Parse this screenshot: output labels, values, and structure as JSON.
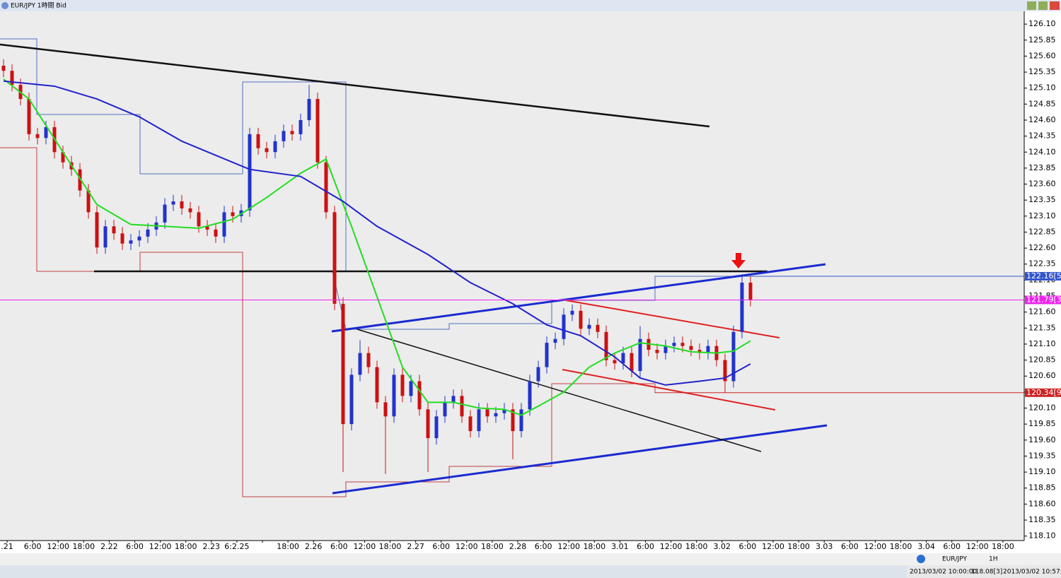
{
  "window_title": "EUR/JPY 1時間 Bid",
  "chart_data": {
    "type": "candlestick",
    "up_color": "#2233cc",
    "down_color": "#cc1111",
    "open": [
      125.45,
      125.37,
      125.15,
      124.93,
      124.38,
      124.32,
      124.49,
      124.1,
      123.94,
      123.83,
      123.5,
      123.16,
      122.61,
      122.94,
      122.83,
      122.67,
      122.72,
      122.78,
      122.89,
      123.0,
      123.28,
      123.33,
      123.22,
      123.16,
      122.94,
      122.89,
      122.78,
      123.16,
      123.1,
      123.19,
      124.38,
      124.16,
      124.1,
      124.27,
      124.43,
      124.38,
      124.6,
      124.93,
      123.94,
      123.16,
      121.73,
      119.85,
      120.62,
      120.96,
      120.74,
      120.19,
      119.97,
      120.62,
      120.29,
      120.52,
      120.08,
      119.63,
      119.97,
      120.19,
      120.29,
      119.97,
      119.74,
      120.08,
      119.97,
      120.02,
      120.08,
      119.74,
      120.08,
      120.52,
      120.74,
      121.12,
      121.18,
      121.56,
      121.62,
      121.34,
      121.4,
      121.29,
      120.85,
      120.8,
      120.96,
      120.68,
      121.18,
      121.01,
      120.96,
      121.07,
      121.12,
      121.07,
      121.01,
      120.96,
      121.07,
      120.85,
      120.52,
      121.29,
      122.06
    ],
    "high": [
      125.55,
      125.47,
      125.25,
      125.03,
      124.48,
      124.59,
      124.59,
      124.2,
      124.04,
      123.93,
      123.6,
      123.26,
      123.04,
      123.04,
      122.93,
      122.82,
      122.88,
      122.99,
      123.1,
      123.38,
      123.43,
      123.43,
      123.32,
      123.26,
      123.04,
      122.99,
      123.26,
      123.26,
      123.29,
      124.48,
      124.48,
      124.26,
      124.37,
      124.53,
      124.53,
      124.7,
      125.15,
      125.03,
      124.04,
      123.26,
      121.83,
      120.72,
      121.16,
      121.06,
      120.84,
      120.29,
      120.72,
      120.72,
      120.62,
      120.62,
      120.18,
      120.07,
      120.29,
      120.39,
      120.39,
      120.07,
      120.18,
      120.18,
      120.12,
      120.18,
      120.18,
      120.18,
      120.62,
      120.84,
      121.22,
      121.28,
      121.66,
      121.72,
      121.72,
      121.5,
      121.5,
      121.39,
      120.95,
      121.06,
      121.06,
      121.38,
      121.28,
      121.11,
      121.17,
      121.22,
      121.22,
      121.17,
      121.11,
      121.17,
      121.17,
      120.95,
      121.39,
      122.16,
      122.16
    ],
    "low": [
      125.27,
      125.05,
      124.83,
      124.28,
      124.22,
      124.22,
      124.0,
      123.84,
      123.73,
      123.4,
      123.06,
      122.51,
      122.51,
      122.73,
      122.57,
      122.57,
      122.62,
      122.68,
      122.79,
      122.9,
      123.18,
      123.12,
      123.06,
      122.84,
      122.79,
      122.68,
      122.68,
      123.0,
      123.0,
      123.09,
      124.06,
      124.0,
      124.0,
      124.17,
      124.28,
      124.28,
      124.5,
      123.84,
      123.06,
      121.63,
      119.1,
      119.75,
      120.52,
      120.64,
      120.09,
      119.07,
      119.87,
      120.19,
      120.19,
      119.98,
      119.1,
      119.53,
      119.87,
      120.09,
      119.87,
      119.64,
      119.64,
      119.87,
      119.87,
      119.92,
      119.3,
      119.64,
      119.98,
      120.42,
      120.64,
      121.02,
      121.08,
      121.46,
      121.24,
      121.24,
      121.19,
      120.75,
      120.7,
      120.7,
      120.58,
      120.58,
      120.91,
      120.86,
      120.86,
      120.97,
      120.97,
      120.91,
      120.86,
      120.86,
      120.75,
      120.34,
      120.42,
      121.19,
      121.69
    ],
    "close": [
      125.37,
      125.15,
      124.93,
      124.38,
      124.32,
      124.49,
      124.1,
      123.94,
      123.83,
      123.5,
      123.16,
      122.61,
      122.94,
      122.83,
      122.67,
      122.72,
      122.78,
      122.89,
      123.0,
      123.28,
      123.33,
      123.22,
      123.16,
      122.94,
      122.89,
      122.78,
      123.16,
      123.1,
      123.19,
      124.38,
      124.16,
      124.1,
      124.27,
      124.43,
      124.38,
      124.6,
      124.93,
      123.94,
      123.16,
      121.73,
      119.85,
      120.62,
      120.96,
      120.74,
      120.19,
      119.97,
      120.62,
      120.29,
      120.52,
      120.08,
      119.63,
      119.97,
      120.19,
      120.29,
      119.97,
      119.74,
      120.08,
      119.97,
      120.02,
      120.08,
      119.74,
      120.08,
      120.52,
      120.74,
      121.12,
      121.18,
      121.56,
      121.62,
      121.34,
      121.4,
      121.29,
      120.85,
      120.8,
      120.96,
      120.68,
      121.18,
      121.01,
      120.96,
      121.07,
      121.12,
      121.07,
      121.01,
      120.96,
      121.07,
      120.85,
      120.52,
      121.29,
      122.06,
      121.79
    ],
    "moving_averages": [
      {
        "color": "#22dd22",
        "x": [
          0,
          3,
          7,
          11,
          15,
          19,
          23,
          27,
          31,
          35,
          38,
          41,
          44,
          47,
          50,
          53,
          56,
          59,
          61,
          63,
          66,
          69,
          72,
          75,
          78,
          81,
          84,
          86,
          88
        ],
        "values": [
          125.24,
          124.93,
          124.1,
          123.28,
          122.97,
          122.94,
          122.91,
          123.05,
          123.39,
          123.77,
          123.99,
          122.94,
          121.84,
          120.74,
          120.19,
          120.19,
          120.1,
          120.08,
          119.99,
          120.13,
          120.35,
          120.74,
          120.96,
          121.12,
          121.07,
          120.98,
          120.96,
          120.99,
          121.15
        ]
      },
      {
        "color": "#2222cc",
        "x": [
          0,
          6,
          11,
          16,
          21,
          25,
          29,
          35,
          40,
          44,
          50,
          55,
          60,
          64,
          68,
          72,
          75,
          78,
          82,
          85,
          88
        ],
        "values": [
          125.21,
          125.13,
          124.93,
          124.65,
          124.27,
          124.05,
          123.83,
          123.72,
          123.33,
          122.94,
          122.5,
          122.06,
          121.73,
          121.4,
          121.23,
          120.9,
          120.57,
          120.46,
          120.52,
          120.57,
          120.79
        ]
      }
    ],
    "ylim": [
      118.03,
      126.3
    ],
    "yticks": [
      {
        "value": 126.1,
        "label": "126.10"
      },
      125.85,
      {
        "value": 125.6,
        "label": "125.60"
      },
      125.35,
      {
        "value": 125.1,
        "label": "125.10"
      },
      124.85,
      {
        "value": 124.6,
        "label": "124.60"
      },
      124.35,
      {
        "value": 124.1,
        "label": "124.10"
      },
      123.85,
      {
        "value": 123.6,
        "label": "123.60"
      },
      123.35,
      {
        "value": 123.1,
        "label": "123.10"
      },
      122.85,
      {
        "value": 122.6,
        "label": "122.60"
      },
      122.35,
      {
        "value": 122.1,
        "label": "122.10"
      },
      121.85,
      {
        "value": 121.6,
        "label": "121.60"
      },
      121.35,
      {
        "value": 121.1,
        "label": "121.10"
      },
      120.85,
      {
        "value": 120.6,
        "label": "120.60"
      },
      120.35,
      {
        "value": 120.1,
        "label": "120.10"
      },
      119.85,
      {
        "value": 119.6,
        "label": "119.60"
      },
      119.35,
      {
        "value": 119.1,
        "label": "119.10"
      },
      118.85,
      {
        "value": 118.6,
        "label": "118.60"
      },
      118.35,
      {
        "value": 118.1,
        "label": "118.10"
      }
    ],
    "price_markers": [
      {
        "value": 122.16,
        "label": "122.16[5",
        "color": "#3355cc"
      },
      {
        "value": 121.79,
        "label": "121.79[3",
        "color": "#ee22ee"
      },
      {
        "value": 120.34,
        "label": "120.34[9",
        "color": "#cc2222"
      }
    ],
    "time_labels": [
      ".21",
      "6:00",
      "12:00",
      "18:00",
      "2.22",
      "6:00",
      "12:00",
      "18:00",
      "2.23",
      "6:2.25",
      null,
      "18:00",
      "2.26",
      "6:00",
      "12:00",
      "18:00",
      "2.27",
      "6:00",
      "12:00",
      "18:00",
      "2.28",
      "6:00",
      "12:00",
      "18:00",
      "3.01",
      "6:00",
      "12:00",
      "18:00",
      "3.02",
      "6:00",
      "12:00",
      "18:00",
      "3.03",
      "6:00",
      "12:00",
      "18:00",
      "3.04",
      "6:00",
      "12:00",
      "18:00"
    ]
  },
  "status": {
    "symbol_tab": "EUR/JPY",
    "period_tab": "1H",
    "bar_time": "2013/03/02 10:00:00",
    "bar_price": "118.08[3]",
    "clock": "2013/03/02 10:57:14"
  }
}
